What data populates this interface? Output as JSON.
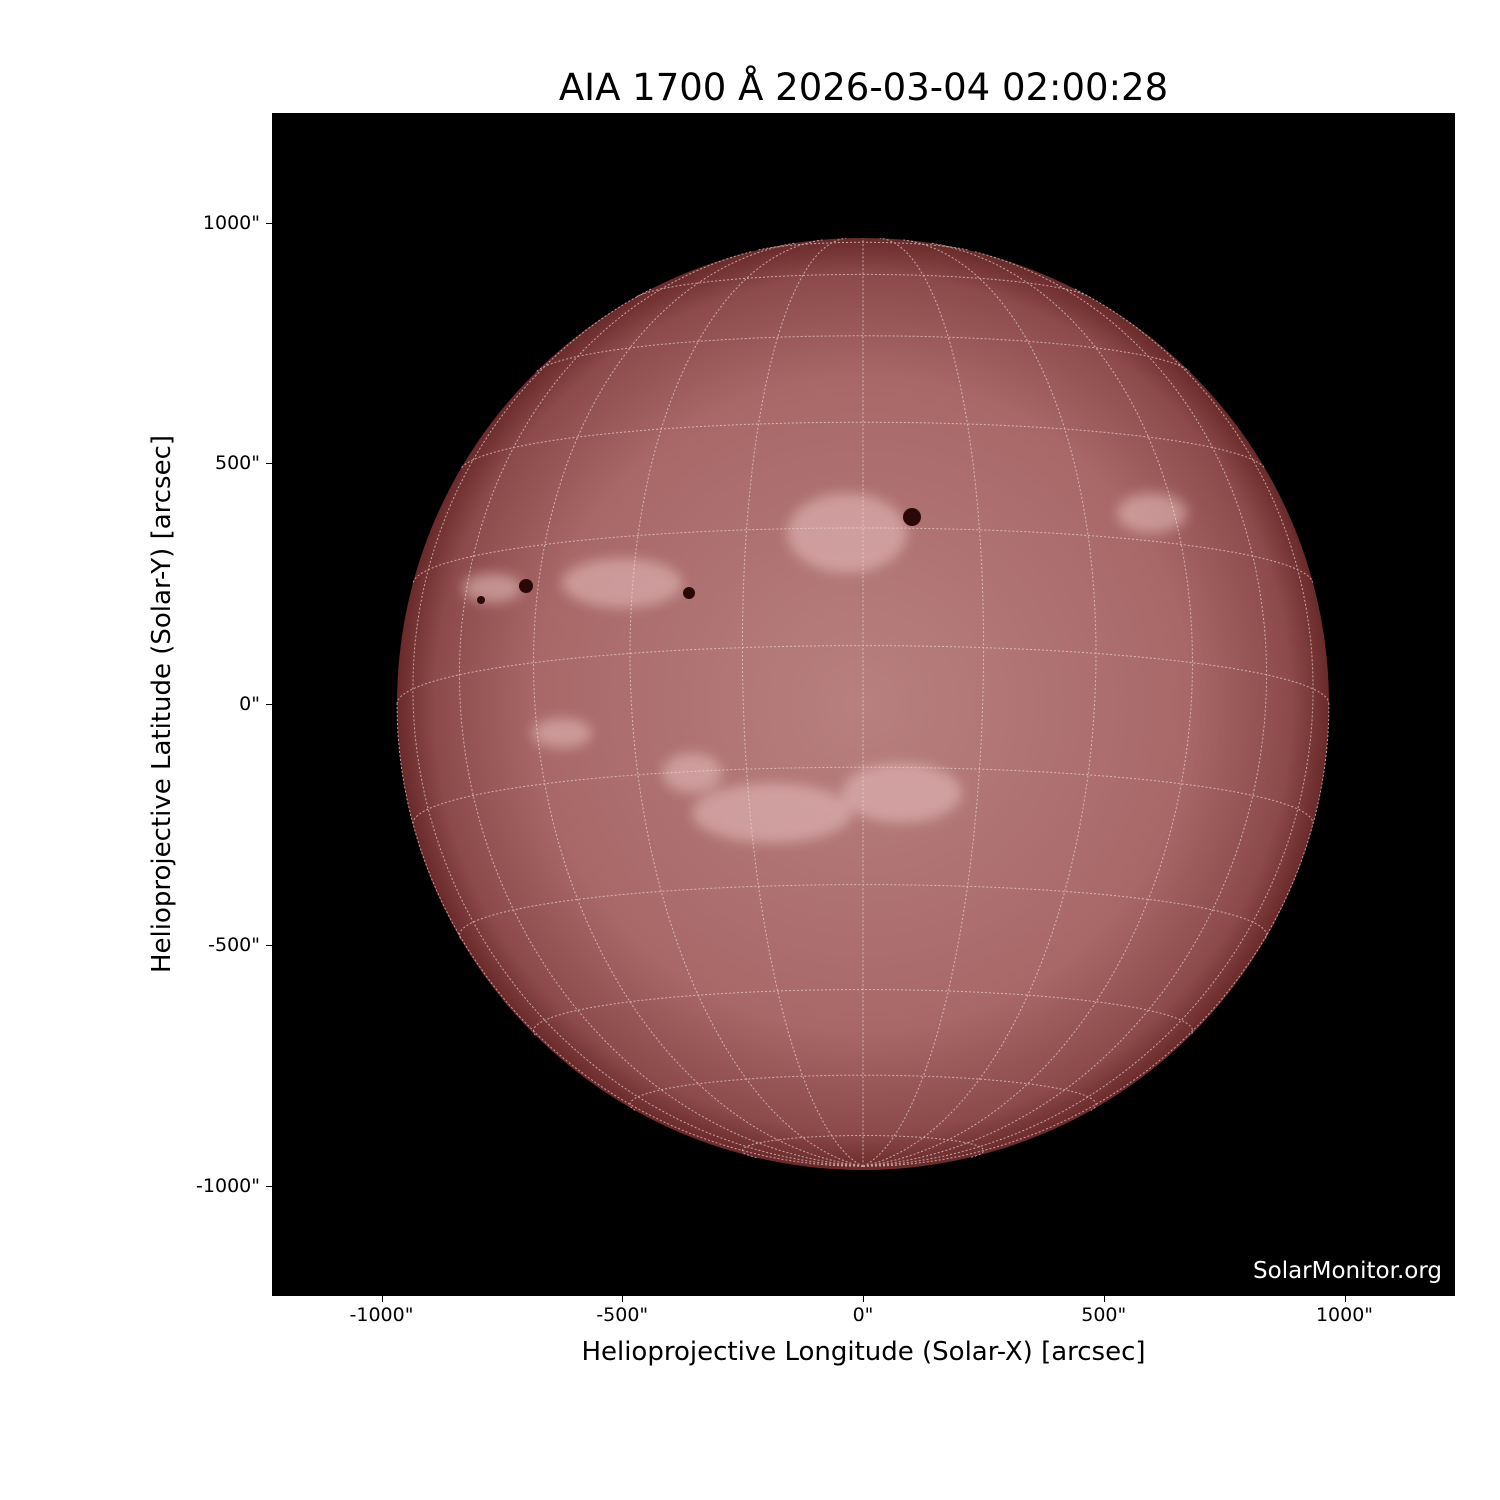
{
  "title": "AIA 1700 Å 2026-03-04 02:00:28",
  "watermark": "SolarMonitor.org",
  "xaxis": {
    "label": "Helioprojective Longitude (Solar-X) [arcsec]",
    "ticks": [
      "-1000\"",
      "-500\"",
      "0\"",
      "500\"",
      "1000\""
    ],
    "tick_values": [
      -1000,
      -500,
      0,
      500,
      1000
    ]
  },
  "yaxis": {
    "label": "Helioprojective Latitude (Solar-Y) [arcsec]",
    "ticks": [
      "1000\"",
      "500\"",
      "0\"",
      "-500\"",
      "-1000\""
    ],
    "tick_values": [
      1000,
      500,
      0,
      -500,
      -1000
    ]
  },
  "colors": {
    "disk": "#b07070",
    "limb": "#6a2a2a",
    "background": "#000000",
    "grid": "#e8d0d0"
  }
}
